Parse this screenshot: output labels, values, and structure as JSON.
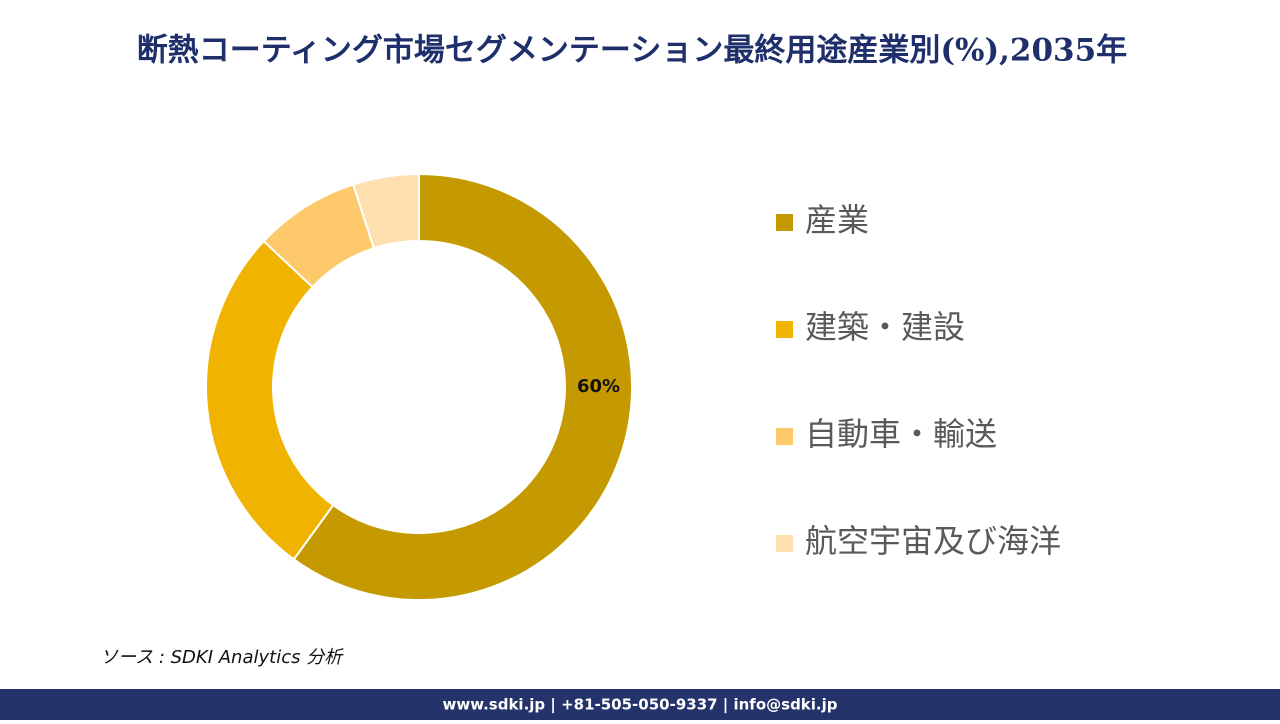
{
  "chart_data": {
    "type": "donut",
    "title": "断熱コーティング市場セグメンテーション最終用途産業別(%),2035年",
    "categories": [
      "産業",
      "建築・建設",
      "自動車・輸送",
      "航空宇宙及び海洋"
    ],
    "values": [
      60,
      27,
      8,
      5
    ],
    "value_labels": [
      "60%",
      null,
      null,
      null
    ],
    "colors": [
      "#C49A00",
      "#F0B400",
      "#FDC96B",
      "#FDDFB0"
    ],
    "legend": "right"
  },
  "source": "ソース : SDKI Analytics 分析",
  "footer": "www.sdki.jp | +81-505-050-9337 | info@sdki.jp"
}
